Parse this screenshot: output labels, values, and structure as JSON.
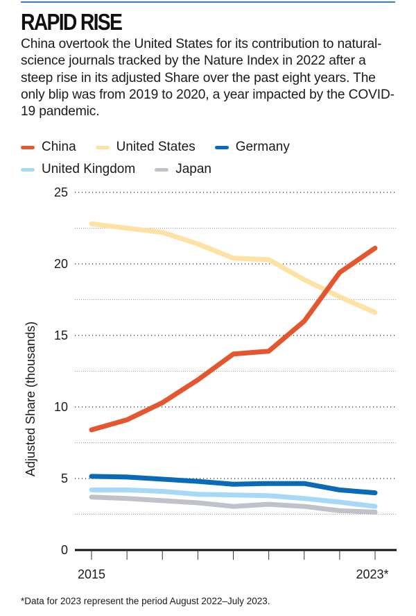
{
  "header": {
    "title": "RAPID RISE",
    "subtitle": "China overtook the United States for its contribution to natural-science journals tracked by the Nature Index in 2022 after a steep rise in its adjusted Share over the past eight years. The only blip was from 2019 to 2020, a year impacted by the COVID-19 pandemic."
  },
  "footnote": "*Data for 2023 represent the period August 2022–July 2023.",
  "chart_data": {
    "type": "line",
    "title": "RAPID RISE",
    "xlabel": "",
    "ylabel": "Adjusted Share (thousands)",
    "x": [
      2015,
      2016,
      2017,
      2018,
      2019,
      2020,
      2021,
      2022,
      2023
    ],
    "x_tick_labels": [
      "2015",
      "",
      "",
      "",
      "",
      "",
      "",
      "",
      "2023*"
    ],
    "ylim": [
      0,
      25
    ],
    "y_ticks": [
      0,
      5,
      10,
      15,
      20,
      25
    ],
    "y_minor_gridlines": [
      2.5,
      7.5,
      12.5,
      17.5,
      22.5
    ],
    "grid": true,
    "legend_position": "top-left",
    "series": [
      {
        "name": "China",
        "color": "#e4572e",
        "values": [
          8.4,
          9.1,
          10.3,
          11.9,
          13.7,
          13.9,
          16.0,
          19.4,
          21.1
        ]
      },
      {
        "name": "United States",
        "color": "#fde2a3",
        "values": [
          22.8,
          22.5,
          22.2,
          21.4,
          20.4,
          20.3,
          18.9,
          17.7,
          16.6
        ]
      },
      {
        "name": "Germany",
        "color": "#0a6ab6",
        "values": [
          5.15,
          5.1,
          4.95,
          4.8,
          4.6,
          4.65,
          4.65,
          4.2,
          4.0
        ]
      },
      {
        "name": "United Kingdom",
        "color": "#a6d9f7",
        "values": [
          4.2,
          4.2,
          4.1,
          3.9,
          3.85,
          3.8,
          3.6,
          3.35,
          3.05
        ]
      },
      {
        "name": "Japan",
        "color": "#bfc3c9",
        "values": [
          3.7,
          3.6,
          3.45,
          3.3,
          3.05,
          3.2,
          3.05,
          2.75,
          2.65
        ]
      }
    ]
  }
}
